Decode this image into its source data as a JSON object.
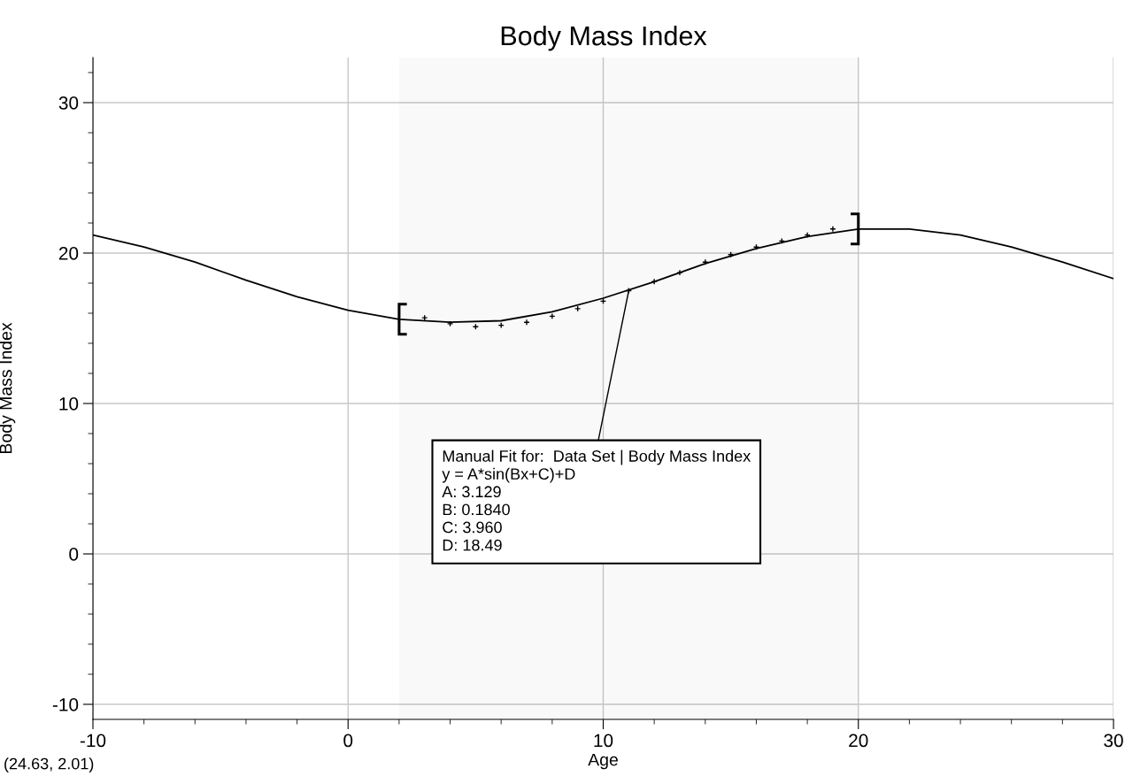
{
  "chart_data": {
    "type": "scatter",
    "title": "Body Mass Index",
    "xlabel": "Age",
    "ylabel": "Body Mass Index",
    "xlim": [
      -10,
      30
    ],
    "ylim": [
      -11,
      33
    ],
    "xticks": [
      -10,
      0,
      10,
      20,
      30
    ],
    "yticks": [
      -10,
      0,
      10,
      20,
      30
    ],
    "grid": true,
    "series": [
      {
        "marker": "cross",
        "color": "#000000",
        "x": [
          3,
          4,
          5,
          6,
          7,
          8,
          9,
          10,
          11,
          12,
          13,
          14,
          15,
          16,
          17,
          18,
          19
        ],
        "values": [
          15.7,
          15.3,
          15.1,
          15.2,
          15.4,
          15.8,
          16.3,
          16.8,
          17.5,
          18.1,
          18.7,
          19.4,
          19.9,
          20.4,
          20.8,
          21.2,
          21.6
        ]
      },
      {
        "type": "line",
        "marker": "none",
        "line_style": "solid",
        "color": "#000000",
        "x": [
          -10,
          -8,
          -6,
          -4,
          -2,
          0,
          2,
          4,
          6,
          8,
          10,
          12,
          14,
          16,
          18,
          20,
          22,
          24,
          26,
          28,
          30
        ],
        "values": [
          21.2,
          20.4,
          19.4,
          18.2,
          17.1,
          16.2,
          15.6,
          15.4,
          15.5,
          16.1,
          17.0,
          18.1,
          19.3,
          20.3,
          21.1,
          21.6,
          21.6,
          21.2,
          20.4,
          19.4,
          18.3
        ]
      }
    ],
    "bands": [
      {
        "axis": "x",
        "from": 2,
        "to": 20,
        "color": "#000000"
      }
    ],
    "annotations": [
      {
        "text": "Manual Fit for:  Data Set | Body Mass Index\ny = A*sin(Bx+C)+D\nA: 3.129\nB: 0.1840\nC: 3.960\nD: 18.49",
        "x": 11,
        "y": 17.5
      },
      "(24.63, 2.01)"
    ]
  }
}
